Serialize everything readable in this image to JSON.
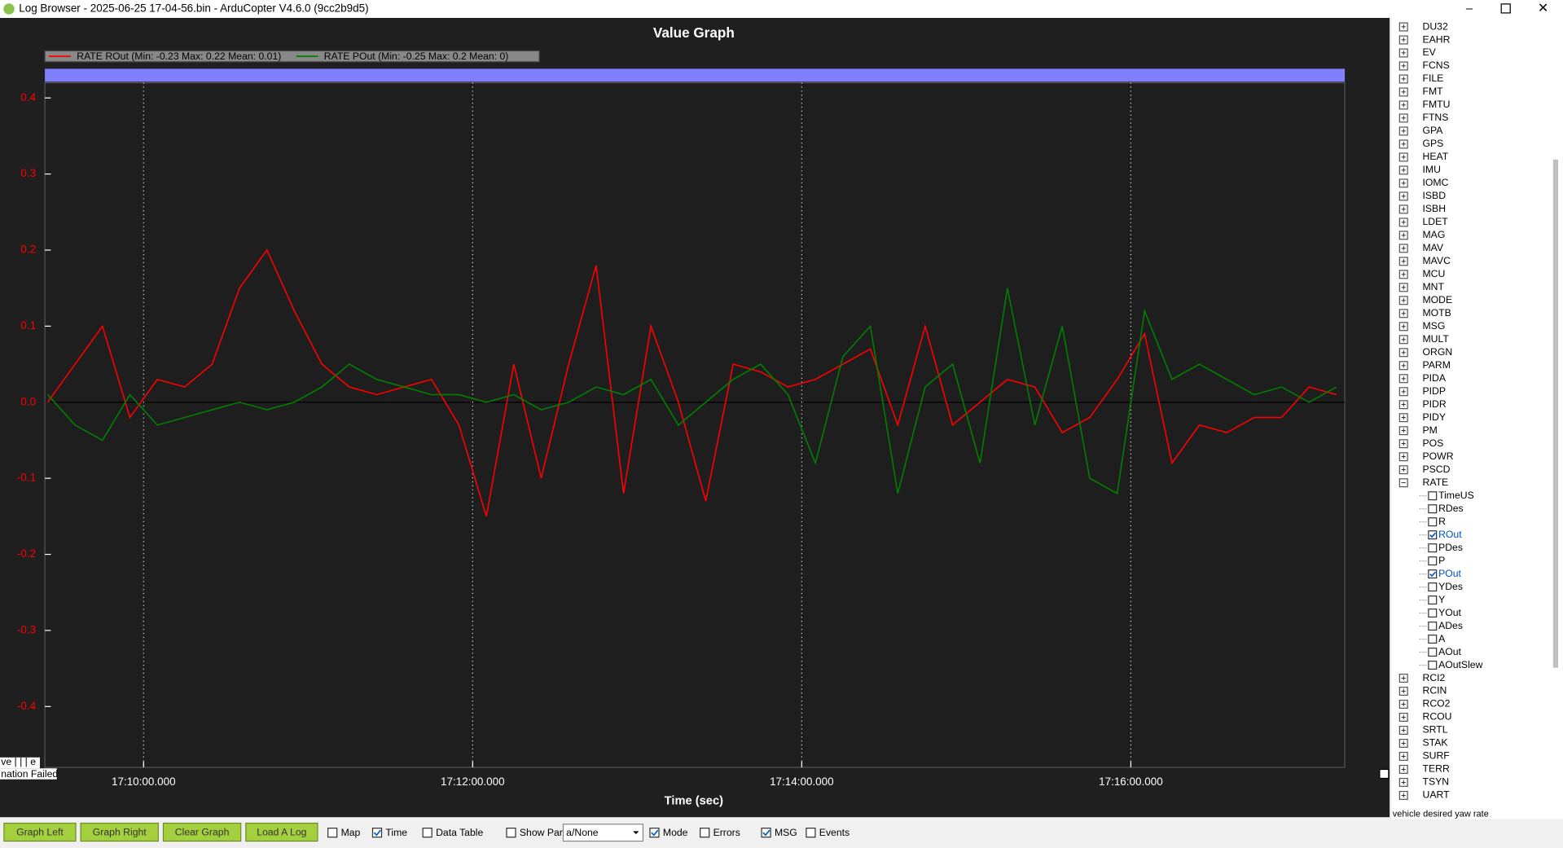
{
  "window": {
    "title": "Log Browser - 2025-06-25 17-04-56.bin - ArduCopter V4.6.0 (9cc2b9d5)"
  },
  "chart_data": {
    "type": "line",
    "title": "Value Graph",
    "x_label": "Time (sec)",
    "x": [
      "17:09:25",
      "17:09:35",
      "17:09:45",
      "17:09:55",
      "17:10:05",
      "17:10:15",
      "17:10:25",
      "17:10:35",
      "17:10:45",
      "17:10:55",
      "17:11:05",
      "17:11:15",
      "17:11:25",
      "17:11:35",
      "17:11:45",
      "17:11:55",
      "17:12:05",
      "17:12:15",
      "17:12:25",
      "17:12:35",
      "17:12:45",
      "17:12:55",
      "17:13:05",
      "17:13:15",
      "17:13:25",
      "17:13:35",
      "17:13:45",
      "17:13:55",
      "17:14:05",
      "17:14:15",
      "17:14:25",
      "17:14:35",
      "17:14:45",
      "17:14:55",
      "17:15:05",
      "17:15:15",
      "17:15:25",
      "17:15:35",
      "17:15:45",
      "17:15:55",
      "17:16:05",
      "17:16:15",
      "17:16:25",
      "17:16:35",
      "17:16:45",
      "17:16:55",
      "17:17:05",
      "17:17:15"
    ],
    "series": [
      {
        "name": "RATE ROut  (Min: -0.23 Max: 0.22 Mean: 0.01)",
        "color": "#ff0000",
        "values": [
          0.0,
          0.05,
          0.1,
          -0.02,
          0.03,
          0.02,
          0.05,
          0.15,
          0.2,
          0.12,
          0.05,
          0.02,
          0.01,
          0.02,
          0.03,
          -0.03,
          -0.15,
          0.05,
          -0.1,
          0.05,
          0.18,
          -0.12,
          0.1,
          0.0,
          -0.13,
          0.05,
          0.04,
          0.02,
          0.03,
          0.05,
          0.07,
          -0.03,
          0.1,
          -0.03,
          0.0,
          0.03,
          0.02,
          -0.04,
          -0.02,
          0.03,
          0.09,
          -0.08,
          -0.03,
          -0.04,
          -0.02,
          -0.02,
          0.02,
          0.01
        ]
      },
      {
        "name": "RATE POut  (Min: -0.25 Max: 0.2 Mean: 0)",
        "color": "#008000",
        "values": [
          0.01,
          -0.03,
          -0.05,
          0.01,
          -0.03,
          -0.02,
          -0.01,
          0.0,
          -0.01,
          0.0,
          0.02,
          0.05,
          0.03,
          0.02,
          0.01,
          0.01,
          0.0,
          0.01,
          -0.01,
          0.0,
          0.02,
          0.01,
          0.03,
          -0.03,
          0.0,
          0.03,
          0.05,
          0.01,
          -0.08,
          0.06,
          0.1,
          -0.12,
          0.02,
          0.05,
          -0.08,
          0.15,
          -0.03,
          0.1,
          -0.1,
          -0.12,
          0.12,
          0.03,
          0.05,
          0.03,
          0.01,
          0.02,
          0.0,
          0.02
        ]
      }
    ],
    "xlim": [
      "17:09:24",
      "17:17:18"
    ],
    "xticks": [
      "17:10:00.000",
      "17:12:00.000",
      "17:14:00.000",
      "17:16:00.000"
    ],
    "ylim": [
      -0.48,
      0.42
    ],
    "yticks": [
      -0.4,
      -0.3,
      -0.2,
      -0.1,
      {
        "value": 0,
        "label": "0.0"
      },
      0.1,
      0.2,
      0.3,
      0.4
    ],
    "grid": true
  },
  "overlay": [
    "ve | | | e",
    "nation Failed"
  ],
  "tree": {
    "items": [
      "DU32",
      "EAHR",
      "EV",
      "FCNS",
      "FILE",
      "FMT",
      "FMTU",
      "FTNS",
      "GPA",
      "GPS",
      "HEAT",
      "IMU",
      "IOMC",
      "ISBD",
      "ISBH",
      "LDET",
      "MAG",
      "MAV",
      "MAVC",
      "MCU",
      "MNT",
      "MODE",
      "MOTB",
      "MSG",
      "MULT",
      "ORGN",
      "PARM",
      "PIDA",
      "PIDP",
      "PIDR",
      "PIDY",
      "PM",
      "POS",
      "POWR",
      "PSCD",
      {
        "label": "RATE",
        "children": [
          {
            "label": "TimeUS",
            "checked": false
          },
          {
            "label": "RDes",
            "checked": false
          },
          {
            "label": "R",
            "checked": false
          },
          {
            "label": "ROut",
            "checked": true
          },
          {
            "label": "PDes",
            "checked": false
          },
          {
            "label": "P",
            "checked": false
          },
          {
            "label": "POut",
            "checked": true
          },
          {
            "label": "YDes",
            "checked": false
          },
          {
            "label": "Y",
            "checked": false
          },
          {
            "label": "YOut",
            "checked": false
          },
          {
            "label": "ADes",
            "checked": false
          },
          {
            "label": "A",
            "checked": false
          },
          {
            "label": "AOut",
            "checked": false
          },
          {
            "label": "AOutSlew",
            "checked": false
          }
        ]
      },
      "RCI2",
      "RCIN",
      "RCO2",
      "RCOU",
      "SRTL",
      "STAK",
      "SURF",
      "TERR",
      "TSYN",
      "UART"
    ],
    "status": "vehicle desired yaw rate"
  },
  "toolbar": {
    "buttons": [
      "Graph Left",
      "Graph Right",
      "Clear Graph",
      "Load A Log"
    ],
    "checks1": [
      {
        "label": "Map",
        "checked": false
      },
      {
        "label": "Time",
        "checked": true
      },
      {
        "label": "Data Table",
        "checked": false
      },
      {
        "label": "Show Params",
        "checked": false
      }
    ],
    "dropdown": "a/None",
    "checks2": [
      {
        "label": "Mode",
        "checked": true
      },
      {
        "label": "Errors",
        "checked": false
      },
      {
        "label": "MSG",
        "checked": true
      },
      {
        "label": "Events",
        "checked": false
      }
    ]
  }
}
